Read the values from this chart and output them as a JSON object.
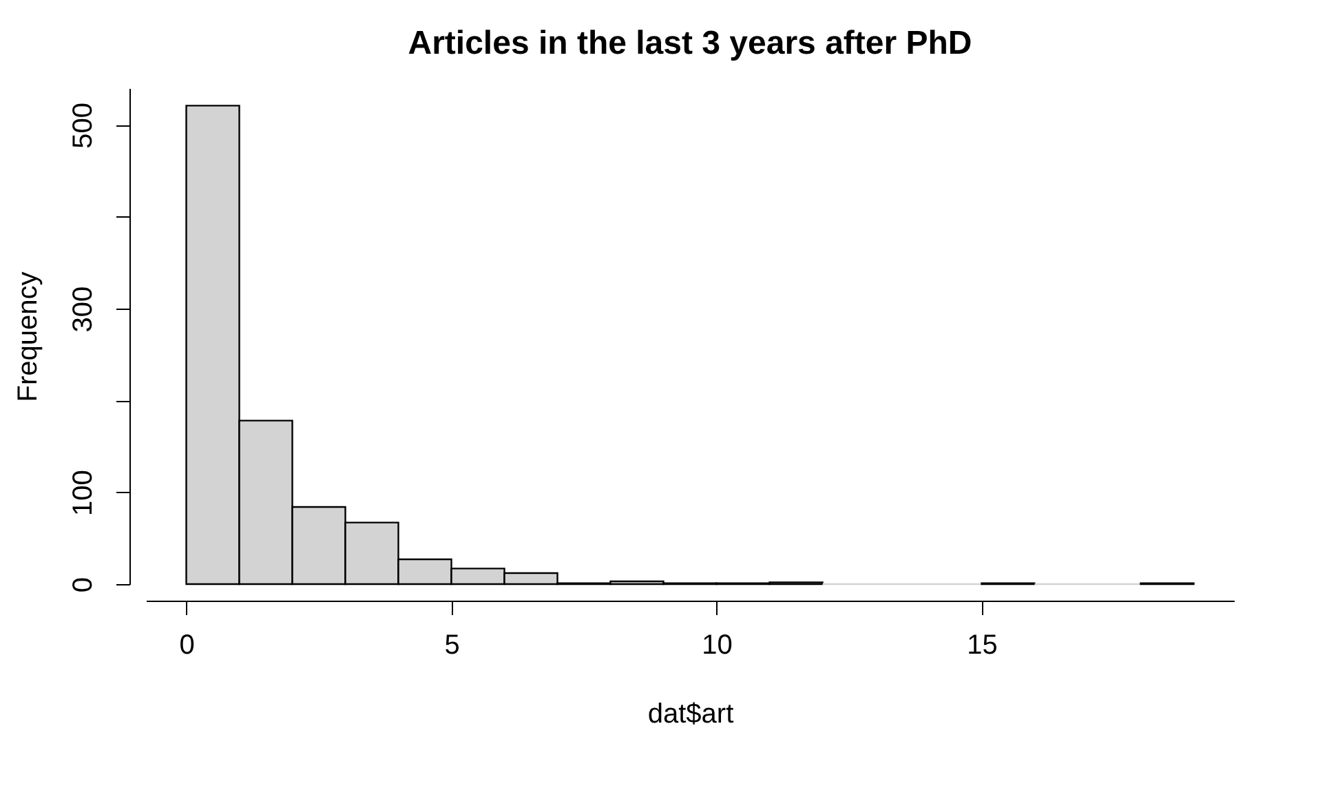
{
  "chart_data": {
    "type": "histogram",
    "title": "Articles in the last 3 years after PhD",
    "xlabel": "dat$art",
    "ylabel": "Frequency",
    "bins": [
      0,
      1,
      2,
      3,
      4,
      5,
      6,
      7,
      8,
      9,
      10,
      11,
      12,
      13,
      14,
      15,
      16,
      17,
      18,
      19
    ],
    "values": [
      521,
      178,
      84,
      67,
      27,
      17,
      12,
      1,
      3,
      1,
      1,
      2,
      0,
      0,
      0,
      1,
      0,
      0,
      1
    ],
    "color": "#d3d3d3",
    "xlim": [
      -0.76,
      19.76
    ],
    "xticks": [
      0,
      5,
      10,
      15
    ],
    "ylim": [
      0,
      540
    ],
    "yticks": [
      0,
      100,
      {
        "value": 200,
        "label": null
      },
      300,
      {
        "value": 400,
        "label": null
      },
      500
    ],
    "grid": false
  }
}
